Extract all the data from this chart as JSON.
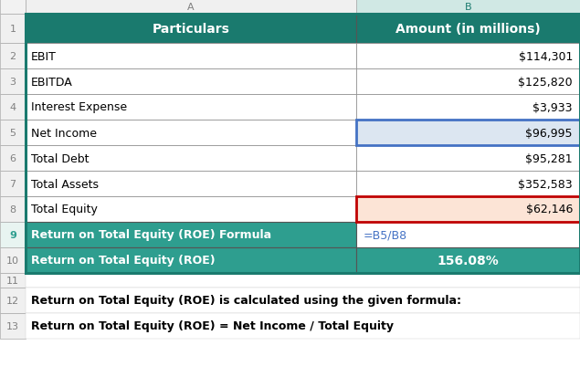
{
  "col_header_bg": "#1a7a6e",
  "col_header_text_color": "#ffffff",
  "teal_row_bg": "#2e9e8f",
  "teal_row_text_color": "#ffffff",
  "blue_highlight_bg": "#dce6f1",
  "pink_highlight_bg": "#fce4d6",
  "blue_border_color": "#4472c4",
  "red_border_color": "#c00000",
  "formula_blue": "#4472c4",
  "particulars_header": "Particulars",
  "amount_header": "Amount (in millions)",
  "rows": [
    {
      "label": "EBIT",
      "value": "$114,301",
      "b_bg": "#ffffff"
    },
    {
      "label": "EBITDA",
      "value": "$125,820",
      "b_bg": "#ffffff"
    },
    {
      "label": "Interest Expense",
      "value": "$3,933",
      "b_bg": "#ffffff"
    },
    {
      "label": "Net Income",
      "value": "$96,995",
      "b_bg": "#dce6f1"
    },
    {
      "label": "Total Debt",
      "value": "$95,281",
      "b_bg": "#ffffff"
    },
    {
      "label": "Total Assets",
      "value": "$352,583",
      "b_bg": "#ffffff"
    },
    {
      "label": "Total Equity",
      "value": "$62,146",
      "b_bg": "#fce4d6"
    }
  ],
  "roe_formula_label": "Return on Total Equity (ROE) Formula",
  "roe_label": "Return on Total Equity (ROE)",
  "roe_value": "156.08%",
  "footer_line1": "Return on Total Equity (ROE) is calculated using the given formula:",
  "footer_line2": "Return on Total Equity (ROE) = Net Income / Total Equity",
  "outer_border_color": "#1a7a6e",
  "fig_w": 6.35,
  "fig_h": 4.14,
  "dpi": 100
}
